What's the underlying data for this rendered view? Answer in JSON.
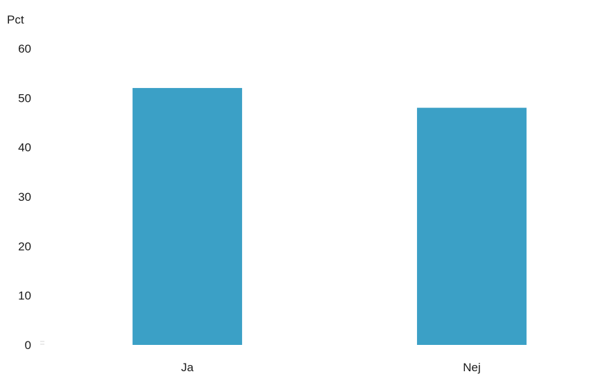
{
  "chart_data": {
    "type": "bar",
    "ylabel": "Pct",
    "categories": [
      "Ja",
      "Nej"
    ],
    "values": [
      52,
      48
    ],
    "ylim": [
      0,
      60
    ],
    "yticks": [
      0,
      10,
      20,
      30,
      40,
      50,
      60
    ],
    "grid": false,
    "legend": "none",
    "bar_color": "#3ba0c6"
  }
}
